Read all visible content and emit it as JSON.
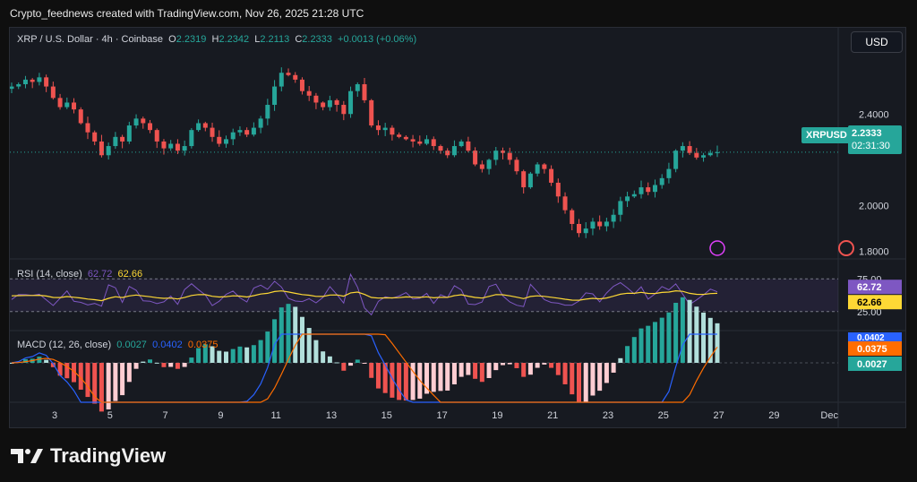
{
  "header": {
    "credit": "Crypto_feednews created with TradingView.com, Nov 26, 2025 21:28 UTC"
  },
  "legend": {
    "symbol": "XRP / U.S. Dollar · 4h · Coinbase",
    "o_label": "O",
    "o": "2.2319",
    "h_label": "H",
    "h": "2.2342",
    "l_label": "L",
    "l": "2.2113",
    "c_label": "C",
    "c": "2.2333",
    "change": "+0.0013 (+0.06%)"
  },
  "currency_button": "USD",
  "price_tag": {
    "symbol": "XRPUSD",
    "price": "2.2333",
    "countdown": "02:31:30"
  },
  "rsi": {
    "label": "RSI (14, close)",
    "v1": "62.72",
    "v2": "62.66",
    "axis_top": "75.00",
    "axis_bottom": "25.00"
  },
  "macd": {
    "label": "MACD (12, 26, close)",
    "v1": "0.0027",
    "v2": "0.0402",
    "v3": "0.0375"
  },
  "logo_text": "TradingView",
  "colors": {
    "up": "#26a69a",
    "down": "#ef5350",
    "rsi": "#7e57c2",
    "rsi_ma": "#fdd835",
    "macd": "#2962ff",
    "signal": "#ff6d00"
  },
  "chart_data": {
    "type": "candlestick",
    "title": "XRP / U.S. Dollar · 4h · Coinbase",
    "y_ticks": [
      "2.4000",
      "2.0000",
      "1.8000"
    ],
    "ylim": [
      1.74,
      2.62
    ],
    "x_ticks": [
      "3",
      "5",
      "7",
      "9",
      "11",
      "13",
      "15",
      "17",
      "19",
      "21",
      "23",
      "25",
      "27",
      "29",
      "Dec"
    ],
    "close_path": [
      2.52,
      2.53,
      2.55,
      2.54,
      2.56,
      2.52,
      2.47,
      2.43,
      2.45,
      2.42,
      2.36,
      2.32,
      2.28,
      2.22,
      2.26,
      2.3,
      2.28,
      2.35,
      2.38,
      2.36,
      2.33,
      2.28,
      2.25,
      2.27,
      2.24,
      2.26,
      2.33,
      2.36,
      2.34,
      2.3,
      2.27,
      2.29,
      2.32,
      2.33,
      2.31,
      2.34,
      2.38,
      2.44,
      2.52,
      2.58,
      2.57,
      2.55,
      2.5,
      2.48,
      2.45,
      2.43,
      2.46,
      2.44,
      2.4,
      2.5,
      2.53,
      2.46,
      2.35,
      2.33,
      2.34,
      2.31,
      2.3,
      2.29,
      2.28,
      2.27,
      2.29,
      2.26,
      2.24,
      2.22,
      2.26,
      2.28,
      2.24,
      2.18,
      2.16,
      2.2,
      2.24,
      2.23,
      2.2,
      2.15,
      2.08,
      2.14,
      2.18,
      2.16,
      2.1,
      2.04,
      1.98,
      1.92,
      1.88,
      1.9,
      1.93,
      1.91,
      1.93,
      1.96,
      2.02,
      2.04,
      2.05,
      2.08,
      2.06,
      2.09,
      2.12,
      2.16,
      2.24,
      2.26,
      2.23,
      2.21,
      2.22,
      2.23,
      2.2333
    ],
    "last_price": 2.2333,
    "rsi_ylim": [
      0,
      100
    ],
    "macd_ylim": [
      -0.17,
      0.13
    ]
  }
}
